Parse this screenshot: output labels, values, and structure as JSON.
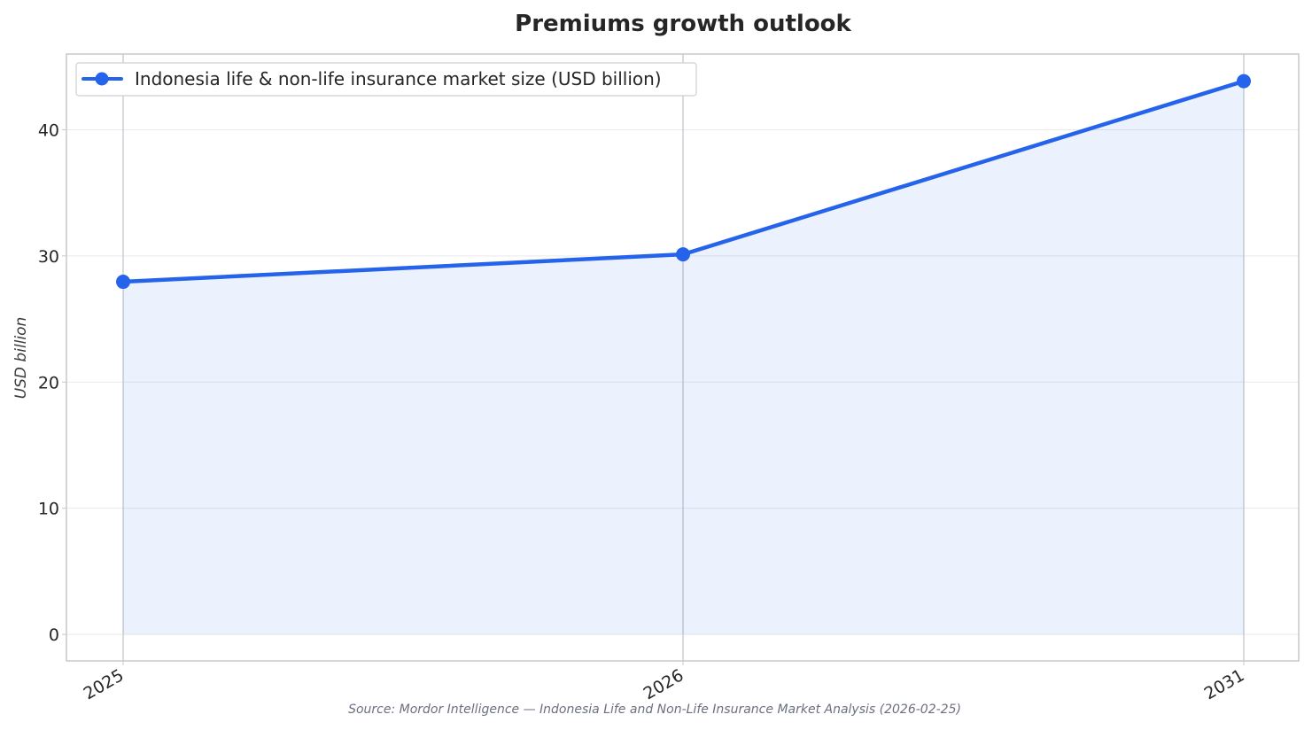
{
  "chart_data": {
    "type": "line",
    "title": "Premiums growth outlook",
    "xlabel": "",
    "ylabel": "USD billion",
    "x": [
      "2025",
      "2026",
      "2031"
    ],
    "series": [
      {
        "name": "Indonesia life & non-life insurance market size (USD billion)",
        "values": [
          27.95,
          30.12,
          43.85
        ],
        "color": "#2563eb"
      }
    ],
    "yticks": [
      "0",
      "10",
      "20",
      "30",
      "40"
    ],
    "ylim": [
      -2.1,
      46
    ],
    "grid": true,
    "area_fill": true,
    "legend_position": "top-left",
    "source": "Source: Mordor Intelligence — Indonesia Life and Non-Life Insurance Market Analysis (2026-02-25)"
  }
}
